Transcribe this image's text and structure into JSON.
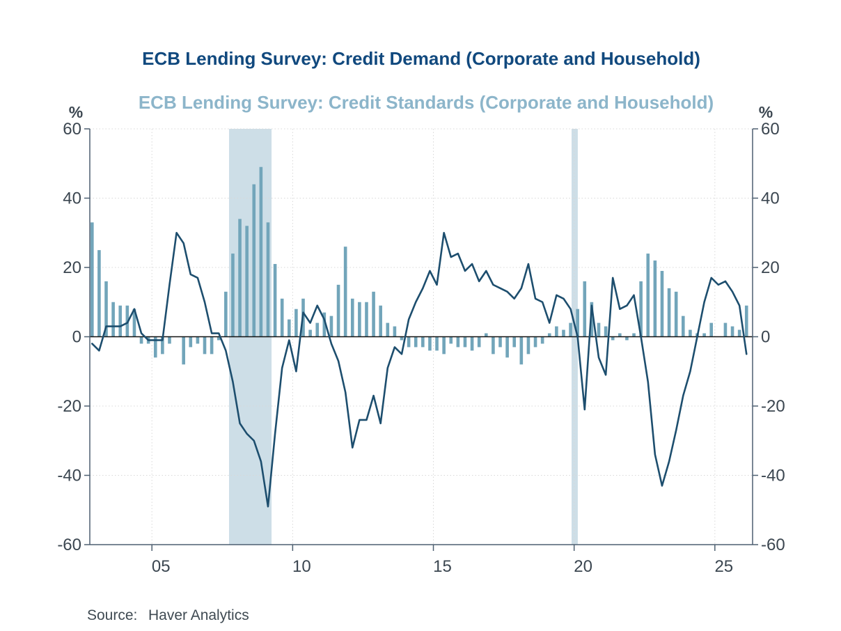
{
  "titles": {
    "demand": "ECB Lending Survey: Credit Demand (Corporate and Household)",
    "standards": "ECB Lending Survey: Credit Standards (Corporate and Household)"
  },
  "axis": {
    "left_unit": "%",
    "right_unit": "%"
  },
  "source": {
    "label": "Source:",
    "value": "Haver Analytics"
  },
  "colors": {
    "title_demand": "#11497e",
    "title_standards": "#8cb5ca",
    "bar": "#72a5ba",
    "line": "#1d4e6e",
    "band": "#cddee7",
    "grid": "#d8d8d8",
    "zero_line": "#111111",
    "axis_line": "#4d5f70",
    "tick_text": "#3b4650",
    "source_text": "#3f4a52"
  },
  "chart_data": {
    "type": "bar",
    "subtype": "bar+line combo",
    "unit": "%",
    "frequency": "quarterly",
    "ylim": [
      -60,
      60
    ],
    "grid": "dotted",
    "y_ticks": [
      60,
      40,
      20,
      0,
      -20,
      -40,
      -60
    ],
    "x_ticks": [
      {
        "label": "05",
        "year": 2005
      },
      {
        "label": "10",
        "year": 2010
      },
      {
        "label": "15",
        "year": 2015
      },
      {
        "label": "20",
        "year": 2020
      },
      {
        "label": "25",
        "year": 2025
      }
    ],
    "shaded_bands": [
      {
        "start": 2007.74,
        "end": 2009.25
      },
      {
        "start": 2019.91,
        "end": 2020.13
      }
    ],
    "quarters": [
      "2002Q4",
      "2003Q1",
      "2003Q2",
      "2003Q3",
      "2003Q4",
      "2004Q1",
      "2004Q2",
      "2004Q3",
      "2004Q4",
      "2005Q1",
      "2005Q2",
      "2005Q3",
      "2005Q4",
      "2006Q1",
      "2006Q2",
      "2006Q3",
      "2006Q4",
      "2007Q1",
      "2007Q2",
      "2007Q3",
      "2007Q4",
      "2008Q1",
      "2008Q2",
      "2008Q3",
      "2008Q4",
      "2009Q1",
      "2009Q2",
      "2009Q3",
      "2009Q4",
      "2010Q1",
      "2010Q2",
      "2010Q3",
      "2010Q4",
      "2011Q1",
      "2011Q2",
      "2011Q3",
      "2011Q4",
      "2012Q1",
      "2012Q2",
      "2012Q3",
      "2012Q4",
      "2013Q1",
      "2013Q2",
      "2013Q3",
      "2013Q4",
      "2014Q1",
      "2014Q2",
      "2014Q3",
      "2014Q4",
      "2015Q1",
      "2015Q2",
      "2015Q3",
      "2015Q4",
      "2016Q1",
      "2016Q2",
      "2016Q3",
      "2016Q4",
      "2017Q1",
      "2017Q2",
      "2017Q3",
      "2017Q4",
      "2018Q1",
      "2018Q2",
      "2018Q3",
      "2018Q4",
      "2019Q1",
      "2019Q2",
      "2019Q3",
      "2019Q4",
      "2020Q1",
      "2020Q2",
      "2020Q3",
      "2020Q4",
      "2021Q1",
      "2021Q2",
      "2021Q3",
      "2021Q4",
      "2022Q1",
      "2022Q2",
      "2022Q3",
      "2022Q4",
      "2023Q1",
      "2023Q2",
      "2023Q3",
      "2023Q4",
      "2024Q1",
      "2024Q2",
      "2024Q3",
      "2024Q4",
      "2025Q1",
      "2025Q2",
      "2025Q3",
      "2025Q4",
      "2026Q1"
    ],
    "series": [
      {
        "name": "ECB Lending Survey: Credit Standards (Corporate and Household)",
        "type": "bar",
        "color": "#72a5ba",
        "values": [
          33,
          25,
          16,
          10,
          9,
          9,
          8,
          -2,
          -2,
          -6,
          -5,
          -2,
          0,
          -8,
          -3,
          -2,
          -5,
          -5,
          -1,
          13,
          24,
          34,
          32,
          44,
          49,
          33,
          21,
          11,
          5,
          8,
          11,
          2,
          4,
          7,
          6,
          15,
          26,
          11,
          10,
          10,
          13,
          9,
          4,
          3,
          -1,
          -3,
          -3,
          -3,
          -4,
          -4,
          -5,
          -2,
          -3,
          -3,
          -4,
          -3,
          1,
          -5,
          -3,
          -6,
          -3,
          -8,
          -5,
          -3,
          -2,
          1,
          3,
          2,
          4,
          8,
          16,
          10,
          4,
          3,
          -1,
          1,
          -1,
          1,
          16,
          24,
          22,
          19,
          14,
          13,
          6,
          2,
          1,
          1,
          4,
          0,
          4,
          3,
          2,
          9
        ]
      },
      {
        "name": "ECB Lending Survey: Credit Demand (Corporate and Household)",
        "type": "line",
        "color": "#1d4e6e",
        "values": [
          -2,
          -4,
          3,
          3,
          3,
          4,
          8,
          1,
          -1,
          -1,
          -1,
          15,
          30,
          27,
          18,
          17,
          10,
          1,
          1,
          -4,
          -13,
          -25,
          -28,
          -30,
          -36,
          -49,
          -28,
          -9,
          -1,
          -10,
          7,
          4,
          9,
          5,
          -2,
          -7,
          -16,
          -32,
          -24,
          -24,
          -17,
          -25,
          -9,
          -3,
          -5,
          5,
          10,
          14,
          19,
          15,
          30,
          23,
          24,
          19,
          21,
          16,
          19,
          15,
          14,
          13,
          11,
          14,
          21,
          11,
          10,
          4,
          12,
          11,
          8,
          0,
          -21,
          9,
          -6,
          -11,
          17,
          8,
          9,
          12,
          0,
          -13,
          -34,
          -43,
          -36,
          -27,
          -17,
          -10,
          0,
          10,
          17,
          15,
          16,
          13,
          9,
          -5
        ]
      }
    ]
  }
}
